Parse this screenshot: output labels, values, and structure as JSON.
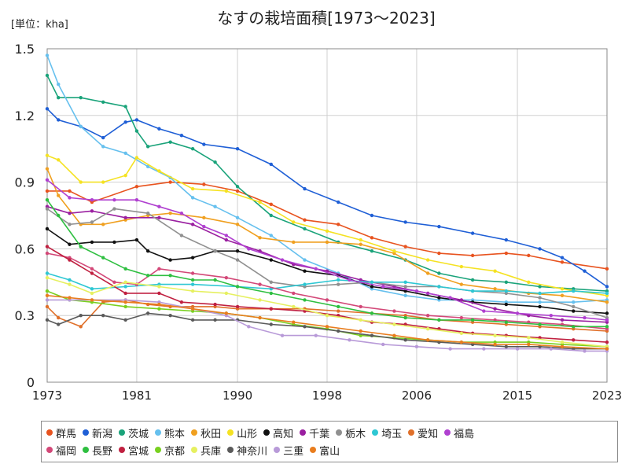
{
  "chart_data": {
    "type": "line",
    "title": "なすの栽培面積[1973～2023]",
    "unit_label": "[単位：kha]",
    "xlabel": "",
    "ylabel": "",
    "xlim": [
      1973,
      2023
    ],
    "ylim": [
      0,
      1.5
    ],
    "x_ticks": [
      "1973",
      "1981",
      "1990",
      "1998",
      "2006",
      "2015",
      "2023"
    ],
    "y_ticks": [
      "0",
      "0.3",
      "0.6",
      "0.9",
      "1.2",
      "1.5"
    ],
    "grid": true,
    "legend_position": "bottom",
    "series": [
      {
        "name": "群馬",
        "color": "#e8531f",
        "x": [
          1973,
          1975,
          1977,
          1981,
          1984,
          1987,
          1990,
          1993,
          1996,
          1999,
          2002,
          2005,
          2008,
          2011,
          2014,
          2016,
          2019,
          2023
        ],
        "values": [
          0.86,
          0.86,
          0.81,
          0.88,
          0.9,
          0.89,
          0.86,
          0.8,
          0.73,
          0.71,
          0.65,
          0.61,
          0.58,
          0.57,
          0.58,
          0.57,
          0.54,
          0.51
        ]
      },
      {
        "name": "新潟",
        "color": "#1f5fd6",
        "x": [
          1973,
          1974,
          1976,
          1978,
          1980,
          1981,
          1983,
          1985,
          1987,
          1990,
          1993,
          1996,
          1999,
          2002,
          2005,
          2008,
          2011,
          2014,
          2017,
          2019,
          2021,
          2023
        ],
        "values": [
          1.23,
          1.18,
          1.15,
          1.1,
          1.17,
          1.18,
          1.14,
          1.11,
          1.07,
          1.05,
          0.98,
          0.87,
          0.81,
          0.75,
          0.72,
          0.7,
          0.67,
          0.64,
          0.6,
          0.56,
          0.5,
          0.43
        ]
      },
      {
        "name": "茨城",
        "color": "#1aa37a",
        "x": [
          1973,
          1974,
          1976,
          1978,
          1980,
          1981,
          1982,
          1984,
          1986,
          1988,
          1990,
          1993,
          1996,
          1999,
          2002,
          2005,
          2008,
          2011,
          2014,
          2017,
          2020,
          2023
        ],
        "values": [
          1.38,
          1.28,
          1.28,
          1.26,
          1.24,
          1.13,
          1.06,
          1.08,
          1.05,
          0.99,
          0.88,
          0.75,
          0.69,
          0.63,
          0.59,
          0.55,
          0.49,
          0.46,
          0.45,
          0.43,
          0.42,
          0.41
        ]
      },
      {
        "name": "熊本",
        "color": "#66c0ee",
        "x": [
          1973,
          1974,
          1976,
          1978,
          1980,
          1982,
          1984,
          1986,
          1988,
          1990,
          1993,
          1996,
          1999,
          2002,
          2005,
          2008,
          2011,
          2014,
          2017,
          2020,
          2023
        ],
        "values": [
          1.47,
          1.34,
          1.15,
          1.06,
          1.03,
          0.97,
          0.92,
          0.83,
          0.79,
          0.74,
          0.66,
          0.55,
          0.49,
          0.42,
          0.39,
          0.37,
          0.37,
          0.36,
          0.36,
          0.36,
          0.37
        ]
      },
      {
        "name": "秋田",
        "color": "#f0a020",
        "x": [
          1973,
          1974,
          1976,
          1978,
          1980,
          1982,
          1984,
          1987,
          1990,
          1992,
          1995,
          1998,
          2001,
          2004,
          2007,
          2010,
          2013,
          2016,
          2019,
          2023
        ],
        "values": [
          0.96,
          0.84,
          0.71,
          0.71,
          0.73,
          0.75,
          0.76,
          0.74,
          0.71,
          0.65,
          0.63,
          0.63,
          0.62,
          0.58,
          0.49,
          0.44,
          0.42,
          0.4,
          0.39,
          0.36
        ]
      },
      {
        "name": "山形",
        "color": "#f5e222",
        "x": [
          1973,
          1974,
          1976,
          1978,
          1980,
          1981,
          1983,
          1986,
          1989,
          1992,
          1995,
          1998,
          2001,
          2004,
          2007,
          2010,
          2013,
          2016,
          2019,
          2023
        ],
        "values": [
          1.02,
          1.0,
          0.9,
          0.9,
          0.93,
          1.01,
          0.95,
          0.87,
          0.86,
          0.81,
          0.72,
          0.68,
          0.64,
          0.59,
          0.55,
          0.52,
          0.5,
          0.45,
          0.42,
          0.39
        ]
      },
      {
        "name": "高知",
        "color": "#111111",
        "x": [
          1973,
          1975,
          1977,
          1979,
          1981,
          1982,
          1984,
          1986,
          1988,
          1990,
          1993,
          1996,
          1999,
          2002,
          2005,
          2008,
          2011,
          2014,
          2017,
          2020,
          2023
        ],
        "values": [
          0.69,
          0.62,
          0.63,
          0.63,
          0.64,
          0.59,
          0.55,
          0.56,
          0.59,
          0.59,
          0.55,
          0.5,
          0.48,
          0.43,
          0.41,
          0.38,
          0.36,
          0.35,
          0.34,
          0.32,
          0.31
        ]
      },
      {
        "name": "千葉",
        "color": "#9a1fa0",
        "x": [
          1973,
          1975,
          1977,
          1980,
          1983,
          1986,
          1989,
          1992,
          1995,
          1998,
          2001,
          2004,
          2007,
          2010,
          2013,
          2016,
          2019,
          2023
        ],
        "values": [
          0.79,
          0.76,
          0.77,
          0.74,
          0.74,
          0.71,
          0.64,
          0.59,
          0.53,
          0.5,
          0.46,
          0.43,
          0.4,
          0.37,
          0.33,
          0.3,
          0.28,
          0.27
        ]
      },
      {
        "name": "栃木",
        "color": "#909090",
        "x": [
          1973,
          1975,
          1977,
          1979,
          1982,
          1985,
          1988,
          1990,
          1993,
          1996,
          1999,
          2002,
          2005,
          2008,
          2011,
          2014,
          2017,
          2020,
          2023
        ],
        "values": [
          0.78,
          0.71,
          0.72,
          0.78,
          0.76,
          0.66,
          0.59,
          0.55,
          0.45,
          0.43,
          0.44,
          0.45,
          0.43,
          0.43,
          0.41,
          0.4,
          0.38,
          0.34,
          0.29
        ]
      },
      {
        "name": "埼玉",
        "color": "#2ec7d3",
        "x": [
          1973,
          1975,
          1977,
          1980,
          1983,
          1986,
          1990,
          1993,
          1996,
          1999,
          2002,
          2005,
          2008,
          2011,
          2014,
          2017,
          2020,
          2023
        ],
        "values": [
          0.49,
          0.46,
          0.42,
          0.43,
          0.44,
          0.44,
          0.43,
          0.42,
          0.44,
          0.46,
          0.45,
          0.45,
          0.43,
          0.41,
          0.41,
          0.4,
          0.41,
          0.4
        ]
      },
      {
        "name": "愛知",
        "color": "#e0702a",
        "x": [
          1973,
          1974,
          1976,
          1978,
          1980,
          1982,
          1984,
          1986,
          1988,
          1990,
          1993,
          1996,
          1999,
          2002,
          2005,
          2008,
          2011,
          2014,
          2017,
          2020,
          2023
        ],
        "values": [
          0.34,
          0.29,
          0.25,
          0.36,
          0.37,
          0.35,
          0.34,
          0.34,
          0.34,
          0.33,
          0.33,
          0.33,
          0.32,
          0.31,
          0.3,
          0.28,
          0.27,
          0.26,
          0.25,
          0.24,
          0.23
        ]
      },
      {
        "name": "福島",
        "color": "#b040d0",
        "x": [
          1973,
          1975,
          1977,
          1979,
          1981,
          1983,
          1985,
          1987,
          1989,
          1991,
          1994,
          1997,
          2000,
          2003,
          2006,
          2009,
          2012,
          2015,
          2018,
          2021,
          2023
        ],
        "values": [
          0.91,
          0.83,
          0.82,
          0.82,
          0.82,
          0.79,
          0.76,
          0.7,
          0.66,
          0.6,
          0.55,
          0.51,
          0.46,
          0.43,
          0.41,
          0.38,
          0.32,
          0.31,
          0.3,
          0.29,
          0.28
        ]
      },
      {
        "name": "福岡",
        "color": "#d34878",
        "x": [
          1973,
          1975,
          1977,
          1979,
          1981,
          1983,
          1986,
          1989,
          1992,
          1995,
          1998,
          2001,
          2004,
          2007,
          2010,
          2013,
          2016,
          2019,
          2023
        ],
        "values": [
          0.58,
          0.56,
          0.51,
          0.45,
          0.44,
          0.51,
          0.49,
          0.47,
          0.44,
          0.4,
          0.37,
          0.34,
          0.32,
          0.3,
          0.29,
          0.28,
          0.27,
          0.26,
          0.24
        ]
      },
      {
        "name": "長野",
        "color": "#2ebf40",
        "x": [
          1973,
          1974,
          1976,
          1978,
          1980,
          1982,
          1984,
          1986,
          1988,
          1990,
          1993,
          1996,
          1999,
          2002,
          2005,
          2008,
          2011,
          2014,
          2017,
          2020,
          2023
        ],
        "values": [
          0.82,
          0.75,
          0.61,
          0.56,
          0.51,
          0.48,
          0.48,
          0.46,
          0.46,
          0.43,
          0.4,
          0.37,
          0.34,
          0.31,
          0.29,
          0.28,
          0.28,
          0.27,
          0.26,
          0.25,
          0.25
        ]
      },
      {
        "name": "宮城",
        "color": "#c02040",
        "x": [
          1973,
          1975,
          1977,
          1980,
          1983,
          1985,
          1988,
          1990,
          1993,
          1996,
          1999,
          2002,
          2005,
          2008,
          2011,
          2014,
          2017,
          2020,
          2023
        ],
        "values": [
          0.61,
          0.55,
          0.49,
          0.4,
          0.4,
          0.36,
          0.35,
          0.34,
          0.33,
          0.32,
          0.3,
          0.27,
          0.26,
          0.24,
          0.22,
          0.21,
          0.2,
          0.19,
          0.18
        ]
      },
      {
        "name": "京都",
        "color": "#78d020",
        "x": [
          1973,
          1975,
          1977,
          1980,
          1983,
          1986,
          1989,
          1992,
          1995,
          1998,
          2001,
          2004,
          2007,
          2010,
          2013,
          2016,
          2019,
          2023
        ],
        "values": [
          0.41,
          0.37,
          0.36,
          0.34,
          0.33,
          0.32,
          0.31,
          0.29,
          0.26,
          0.24,
          0.21,
          0.2,
          0.19,
          0.18,
          0.18,
          0.18,
          0.17,
          0.16
        ]
      },
      {
        "name": "兵庫",
        "color": "#e6f060",
        "x": [
          1973,
          1975,
          1977,
          1980,
          1983,
          1986,
          1989,
          1992,
          1995,
          1998,
          2001,
          2004,
          2007,
          2010,
          2013,
          2016,
          2019,
          2023
        ],
        "values": [
          0.47,
          0.44,
          0.4,
          0.45,
          0.43,
          0.41,
          0.4,
          0.37,
          0.34,
          0.3,
          0.28,
          0.26,
          0.24,
          0.22,
          0.21,
          0.2,
          0.18,
          0.16
        ]
      },
      {
        "name": "神奈川",
        "color": "#5a5a5a",
        "x": [
          1973,
          1974,
          1976,
          1978,
          1980,
          1982,
          1984,
          1986,
          1988,
          1990,
          1993,
          1996,
          1999,
          2002,
          2005,
          2008,
          2011,
          2014,
          2017,
          2020,
          2023
        ],
        "values": [
          0.28,
          0.26,
          0.3,
          0.3,
          0.28,
          0.31,
          0.3,
          0.28,
          0.28,
          0.28,
          0.26,
          0.25,
          0.23,
          0.21,
          0.19,
          0.18,
          0.17,
          0.16,
          0.16,
          0.15,
          0.15
        ]
      },
      {
        "name": "三重",
        "color": "#b89ad8",
        "x": [
          1973,
          1975,
          1977,
          1980,
          1983,
          1986,
          1989,
          1991,
          1994,
          1997,
          2000,
          2003,
          2006,
          2009,
          2012,
          2015,
          2018,
          2021,
          2023
        ],
        "values": [
          0.37,
          0.37,
          0.37,
          0.37,
          0.36,
          0.33,
          0.3,
          0.25,
          0.21,
          0.21,
          0.19,
          0.17,
          0.16,
          0.15,
          0.15,
          0.15,
          0.15,
          0.14,
          0.14
        ]
      },
      {
        "name": "富山",
        "color": "#e97d1e",
        "x": [
          1973,
          1975,
          1977,
          1980,
          1983,
          1986,
          1989,
          1992,
          1995,
          1998,
          2001,
          2004,
          2007,
          2010,
          2013,
          2016,
          2019,
          2023
        ],
        "values": [
          0.39,
          0.38,
          0.37,
          0.36,
          0.35,
          0.33,
          0.31,
          0.29,
          0.27,
          0.25,
          0.23,
          0.21,
          0.19,
          0.18,
          0.17,
          0.17,
          0.16,
          0.15
        ]
      }
    ]
  }
}
